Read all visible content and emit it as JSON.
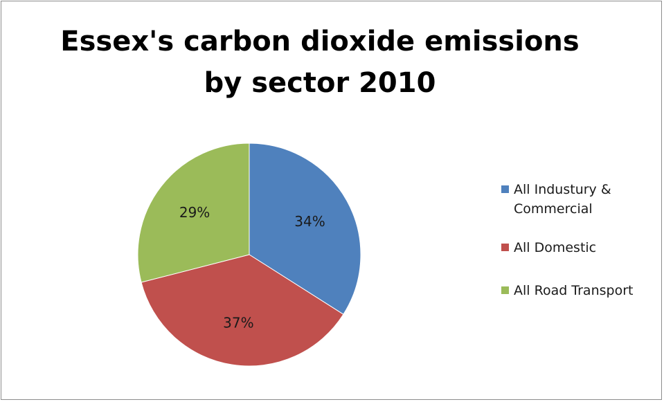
{
  "chart_data": {
    "type": "pie",
    "title": "Essex's carbon dioxide emissions by sector 2010",
    "categories": [
      "All Industury & Commercial",
      "All Domestic",
      "All Road Transport"
    ],
    "values": [
      34,
      37,
      29
    ],
    "labels": [
      "34%",
      "37%",
      "29%"
    ],
    "colors": [
      "#4F81BD",
      "#C0504D",
      "#9BBB59"
    ],
    "legend_position": "right"
  }
}
